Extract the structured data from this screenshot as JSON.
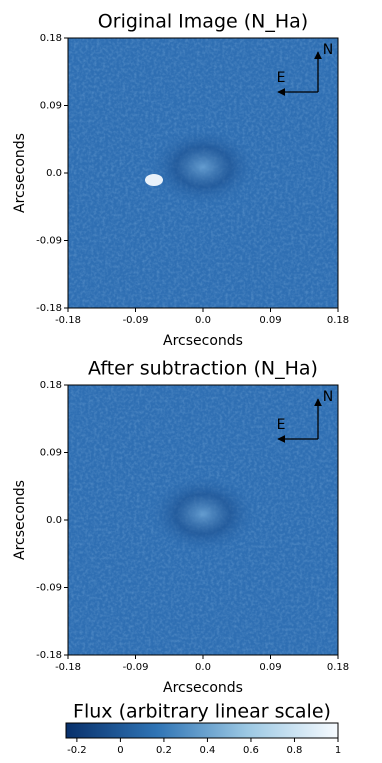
{
  "chart_data": [
    {
      "type": "image",
      "title": "Original Image (N_Ha)",
      "xlabel": "Arcseconds",
      "ylabel": "Arcseconds",
      "xlim": [
        -0.18,
        0.18
      ],
      "ylim": [
        -0.18,
        0.18
      ],
      "xticks": [
        -0.18,
        -0.09,
        {
          "value": 0,
          "label": "0.0"
        },
        0.09,
        0.18
      ],
      "yticks": [
        -0.18,
        -0.09,
        {
          "value": 0,
          "label": "0.0"
        },
        0.09,
        0.18
      ],
      "compass": {
        "north": "N",
        "east": "E"
      }
    },
    {
      "type": "image",
      "title": "After subtraction (N_Ha)",
      "xlabel": "Arcseconds",
      "ylabel": "Arcseconds",
      "xlim": [
        -0.18,
        0.18
      ],
      "ylim": [
        -0.18,
        0.18
      ],
      "xticks": [
        -0.18,
        -0.09,
        {
          "value": 0,
          "label": "0.0"
        },
        0.09,
        0.18
      ],
      "yticks": [
        -0.18,
        -0.09,
        {
          "value": 0,
          "label": "0.0"
        },
        0.09,
        0.18
      ],
      "compass": {
        "north": "N",
        "east": "E"
      }
    },
    {
      "type": "colorbar",
      "title": "Flux (arbitrary linear scale)",
      "xlim": [
        -0.25,
        1
      ],
      "xticks": [
        -0.2,
        0,
        0.2,
        0.4,
        0.6,
        0.8,
        1
      ],
      "colors": [
        "#08306b",
        "#2f74b5",
        "#9cc8e3",
        "#f7fbff"
      ]
    }
  ]
}
